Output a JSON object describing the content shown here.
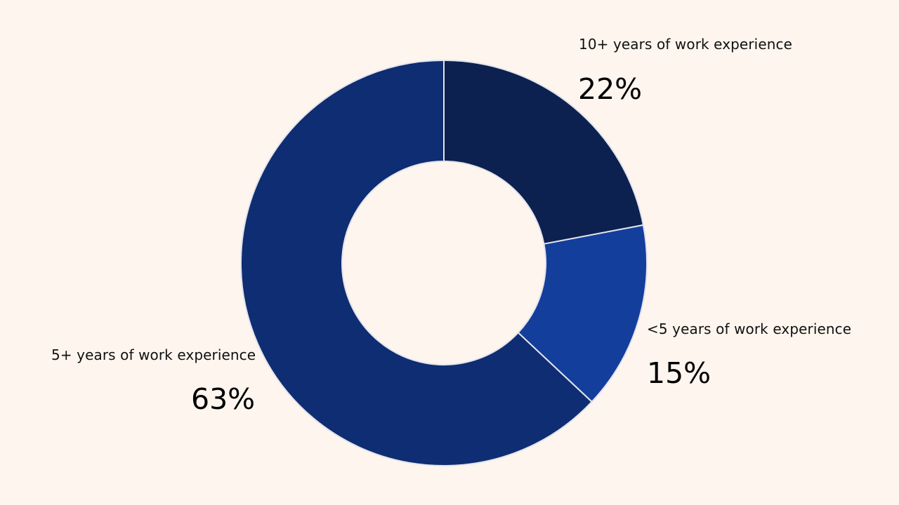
{
  "chart_data": {
    "type": "pie",
    "variant": "donut",
    "start": "12 o'clock, clockwise",
    "slices": [
      {
        "label": "10+ years of work experience",
        "value": 22,
        "value_label": "22%",
        "color": "#0c214f"
      },
      {
        "label": "<5 years of work experience",
        "value": 15,
        "value_label": "15%",
        "color": "#143e9c"
      },
      {
        "label": "5+ years of work experience",
        "value": 63,
        "value_label": "63%",
        "color": "#0e2d72"
      }
    ]
  },
  "colors": {
    "background": "#fdf5ee",
    "slice_border": "#e4e4ec"
  }
}
